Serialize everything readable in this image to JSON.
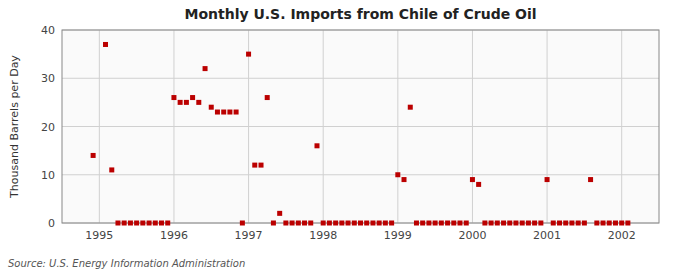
{
  "chart_data": {
    "type": "scatter",
    "title": "Monthly U.S. Imports from Chile of Crude Oil",
    "ylabel": "Thousand Barrels per Day",
    "annotations": [
      "Source: U.S. Energy Information Administration"
    ],
    "color": "#bb0000",
    "marker": "square",
    "grid": true,
    "xlim": [
      1994.5,
      2002.5
    ],
    "ylim": [
      0,
      40
    ],
    "xticks": [
      1995,
      1996,
      1997,
      1998,
      1999,
      2000,
      2001,
      2002
    ],
    "yticks": [
      0,
      10,
      20,
      30,
      40
    ],
    "x": [
      1994.917,
      1995.083,
      1995.167,
      1995.25,
      1995.333,
      1995.417,
      1995.5,
      1995.583,
      1995.667,
      1995.75,
      1995.833,
      1995.917,
      1996.0,
      1996.083,
      1996.167,
      1996.25,
      1996.333,
      1996.417,
      1996.5,
      1996.583,
      1996.667,
      1996.75,
      1996.833,
      1996.917,
      1997.0,
      1997.083,
      1997.167,
      1997.25,
      1997.333,
      1997.417,
      1997.5,
      1997.583,
      1997.667,
      1997.75,
      1997.833,
      1997.917,
      1998.0,
      1998.083,
      1998.167,
      1998.25,
      1998.333,
      1998.417,
      1998.5,
      1998.583,
      1998.667,
      1998.75,
      1998.833,
      1998.917,
      1999.0,
      1999.083,
      1999.167,
      1999.25,
      1999.333,
      1999.417,
      1999.5,
      1999.583,
      1999.667,
      1999.75,
      1999.833,
      1999.917,
      2000.0,
      2000.083,
      2000.167,
      2000.25,
      2000.333,
      2000.417,
      2000.5,
      2000.583,
      2000.667,
      2000.75,
      2000.833,
      2000.917,
      2001.0,
      2001.083,
      2001.167,
      2001.25,
      2001.333,
      2001.417,
      2001.5,
      2001.583,
      2001.667,
      2001.75,
      2001.833,
      2001.917,
      2002.0,
      2002.083
    ],
    "values": [
      14,
      37,
      11,
      0,
      0,
      0,
      0,
      0,
      0,
      0,
      0,
      0,
      26,
      25,
      25,
      26,
      25,
      32,
      24,
      23,
      23,
      23,
      23,
      0,
      35,
      12,
      12,
      26,
      0,
      2,
      0,
      0,
      0,
      0,
      0,
      16,
      0,
      0,
      0,
      0,
      0,
      0,
      0,
      0,
      0,
      0,
      0,
      0,
      10,
      9,
      24,
      0,
      0,
      0,
      0,
      0,
      0,
      0,
      0,
      0,
      9,
      8,
      0,
      0,
      0,
      0,
      0,
      0,
      0,
      0,
      0,
      0,
      9,
      0,
      0,
      0,
      0,
      0,
      0,
      9,
      0,
      0,
      0,
      0,
      0,
      0
    ]
  }
}
